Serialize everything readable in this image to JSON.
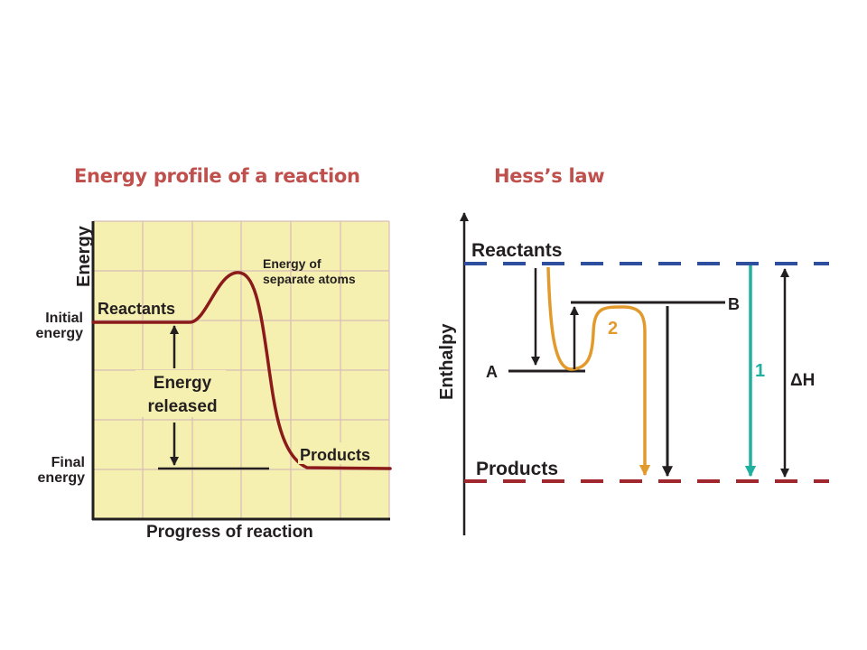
{
  "slide": {
    "left_title": "Energy profile of a reaction",
    "right_title": "Hess’s law"
  },
  "energy_profile": {
    "y_axis_label": "Energy",
    "x_axis_label": "Progress of reaction",
    "initial_energy_line1": "Initial",
    "initial_energy_line2": "energy",
    "final_energy_line1": "Final",
    "final_energy_line2": "energy",
    "reactants": "Reactants",
    "products": "Products",
    "peak_line1": "Energy of",
    "peak_line2": "separate atoms",
    "released_line1": "Energy",
    "released_line2": "released",
    "colors": {
      "grid_fill": "#f5f0b0",
      "grid_line": "#d8bcb8",
      "curve": "#8b1a1a"
    }
  },
  "hess_law": {
    "y_axis_label": "Enthalpy",
    "reactants": "Reactants",
    "products": "Products",
    "intermediate_a": "A",
    "intermediate_b": "B",
    "route_1": "1",
    "route_2": "2",
    "delta_h": "ΔH",
    "colors": {
      "reactants_line": "#2e4f9e",
      "products_line": "#a0272d",
      "route_1": "#1fb0a0",
      "route_2": "#e39a2d",
      "arrows": "#231f20"
    }
  }
}
